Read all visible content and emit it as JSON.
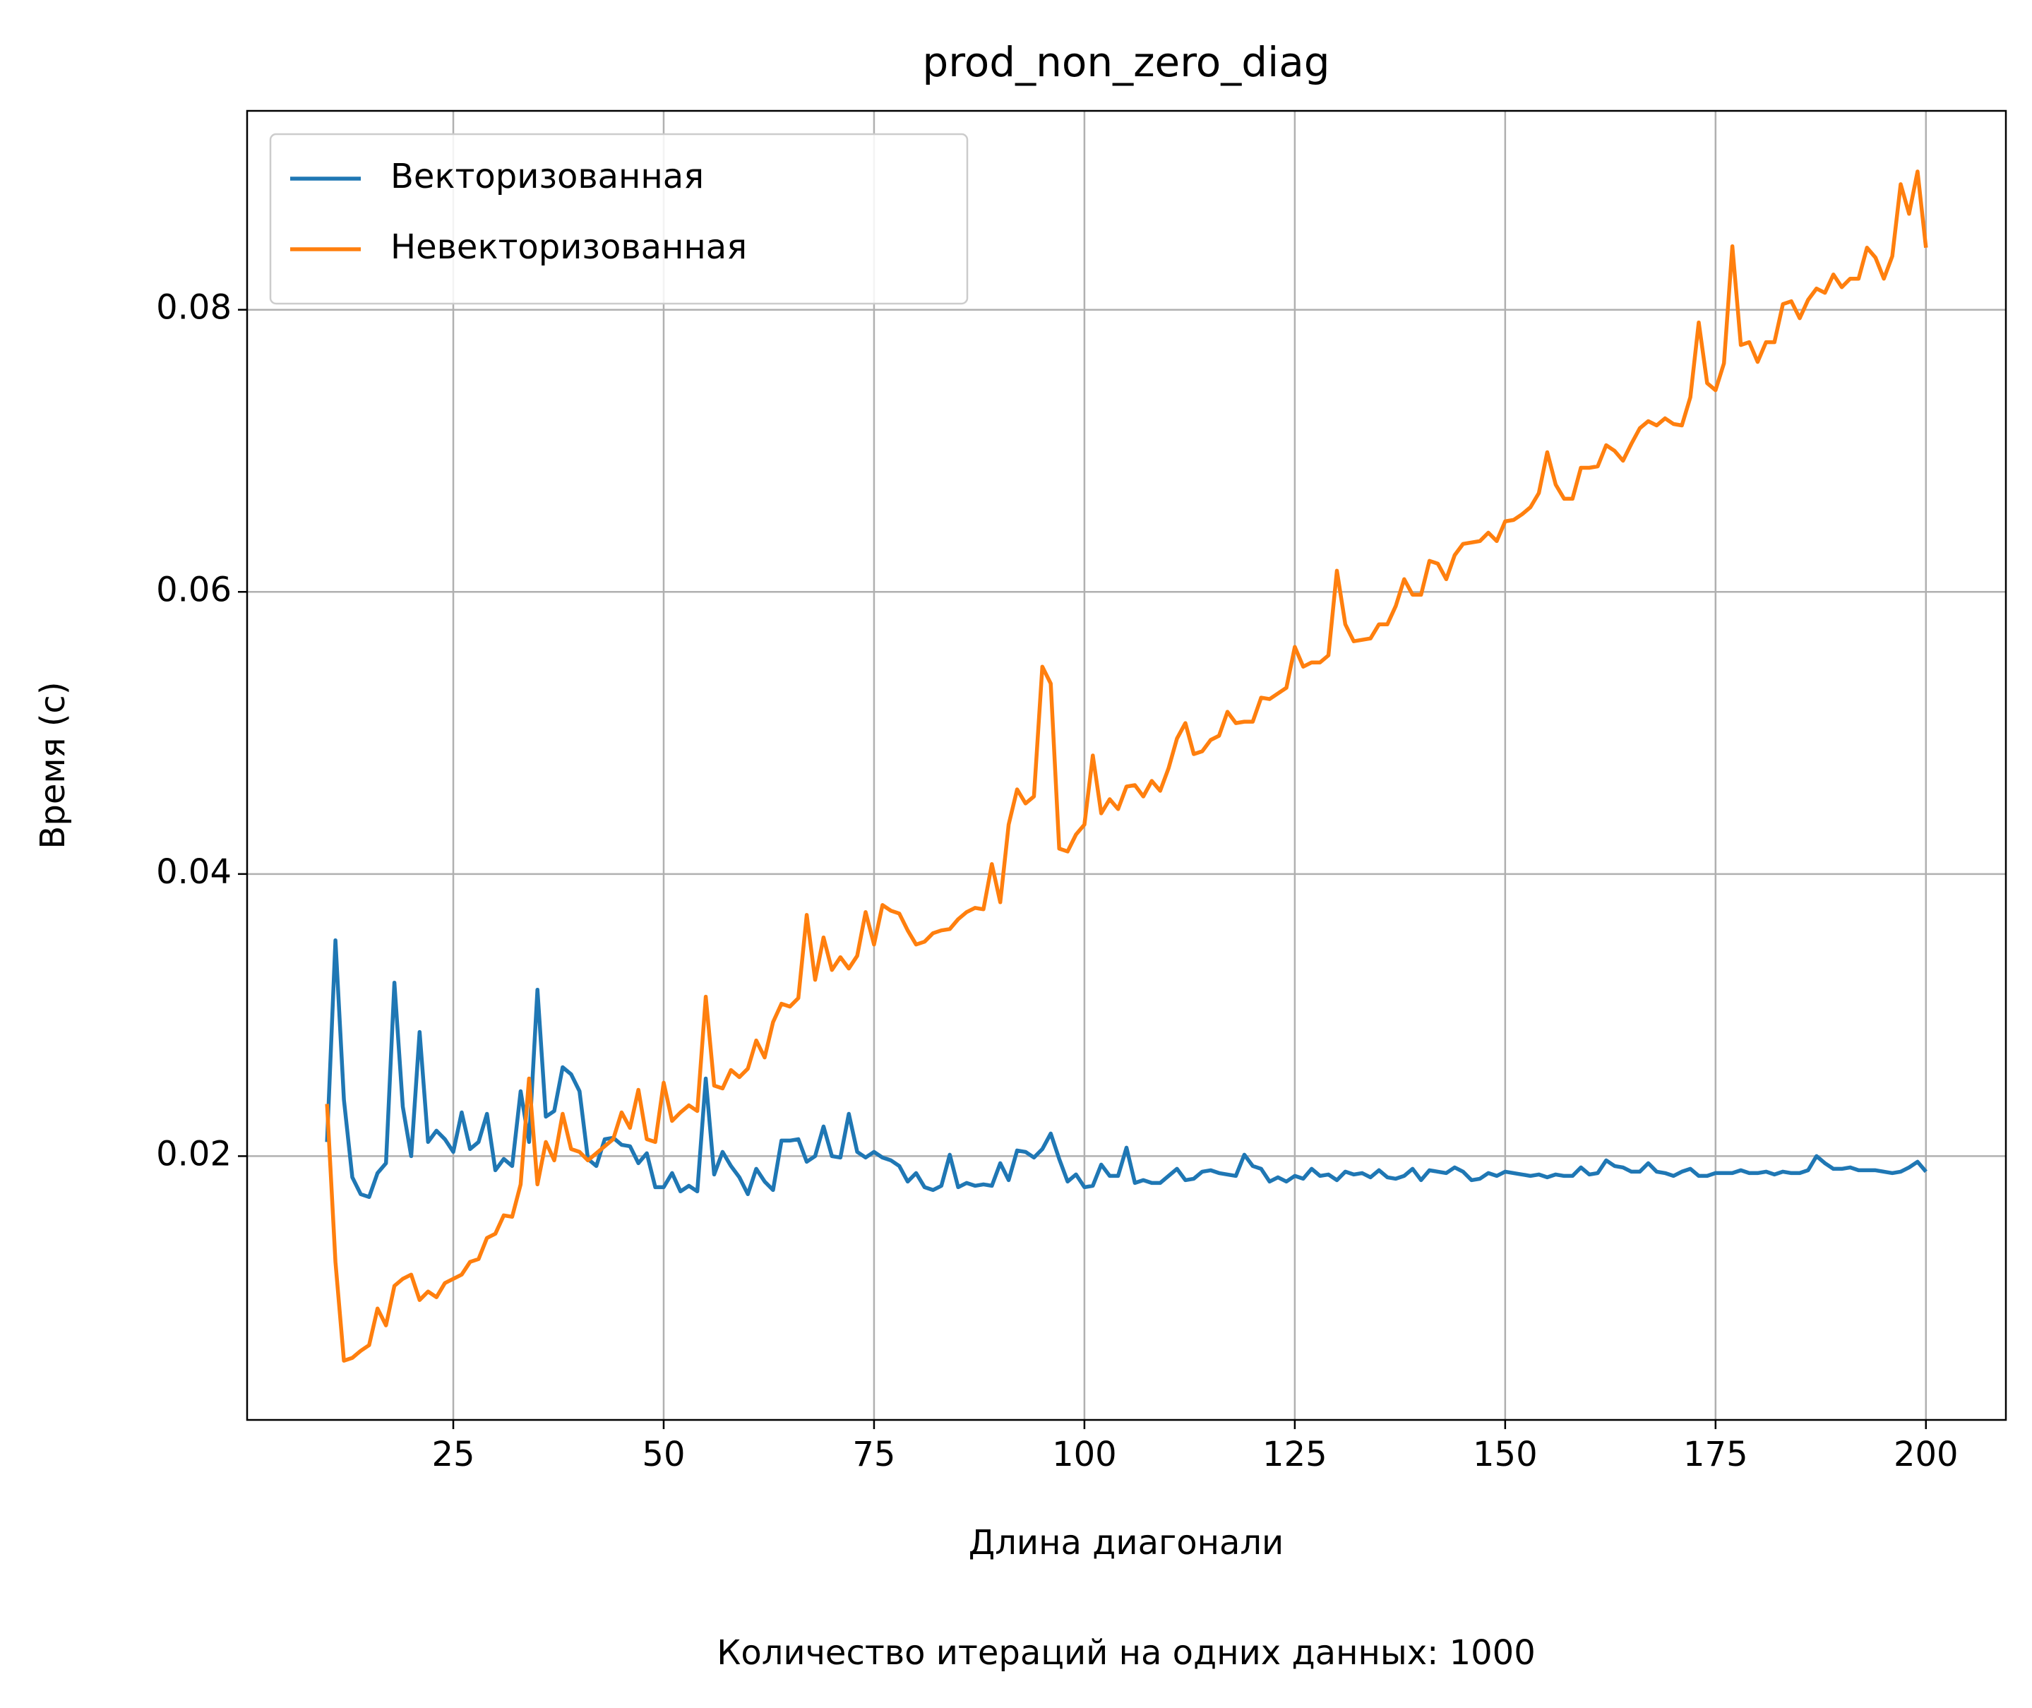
{
  "chart_data": {
    "type": "line",
    "title": "prod_non_zero_diag",
    "xlabel": "Длина диагонали",
    "ylabel": "Время (с)",
    "note": "Количество итераций на одних данных: 1000",
    "x": [
      10,
      11,
      12,
      13,
      14,
      15,
      16,
      17,
      18,
      19,
      20,
      21,
      22,
      23,
      24,
      25,
      26,
      27,
      28,
      29,
      30,
      31,
      32,
      33,
      34,
      35,
      36,
      37,
      38,
      39,
      40,
      41,
      42,
      43,
      44,
      45,
      46,
      47,
      48,
      49,
      50,
      51,
      52,
      53,
      54,
      55,
      56,
      57,
      58,
      59,
      60,
      61,
      62,
      63,
      64,
      65,
      66,
      67,
      68,
      69,
      70,
      71,
      72,
      73,
      74,
      75,
      76,
      77,
      78,
      79,
      80,
      81,
      82,
      83,
      84,
      85,
      86,
      87,
      88,
      89,
      90,
      91,
      92,
      93,
      94,
      95,
      96,
      97,
      98,
      99,
      100,
      101,
      102,
      103,
      104,
      105,
      106,
      107,
      108,
      109,
      110,
      111,
      112,
      113,
      114,
      115,
      116,
      117,
      118,
      119,
      120,
      121,
      122,
      123,
      124,
      125,
      126,
      127,
      128,
      129,
      130,
      131,
      132,
      133,
      134,
      135,
      136,
      137,
      138,
      139,
      140,
      141,
      142,
      143,
      144,
      145,
      146,
      147,
      148,
      149,
      150,
      151,
      152,
      153,
      154,
      155,
      156,
      157,
      158,
      159,
      160,
      161,
      162,
      163,
      164,
      165,
      166,
      167,
      168,
      169,
      170,
      171,
      172,
      173,
      174,
      175,
      176,
      177,
      178,
      179,
      180,
      181,
      182,
      183,
      184,
      185,
      186,
      187,
      188,
      189,
      190,
      191,
      192,
      193,
      194,
      195,
      196,
      197,
      198,
      199,
      200
    ],
    "series": [
      {
        "name": "Векторизованная",
        "color": "#1f77b4",
        "values": [
          0.021,
          0.0353,
          0.024,
          0.0185,
          0.0173,
          0.0171,
          0.0188,
          0.0195,
          0.0323,
          0.0235,
          0.02,
          0.0288,
          0.021,
          0.0218,
          0.0212,
          0.0203,
          0.0231,
          0.0205,
          0.021,
          0.023,
          0.019,
          0.0198,
          0.0193,
          0.0246,
          0.021,
          0.0318,
          0.0228,
          0.0232,
          0.0263,
          0.0258,
          0.0246,
          0.0198,
          0.0193,
          0.0212,
          0.0213,
          0.0208,
          0.0207,
          0.0195,
          0.0202,
          0.0178,
          0.0178,
          0.0188,
          0.0175,
          0.0179,
          0.0175,
          0.0255,
          0.0187,
          0.0203,
          0.0193,
          0.0185,
          0.0173,
          0.0191,
          0.0182,
          0.0176,
          0.0211,
          0.0211,
          0.0212,
          0.0196,
          0.02,
          0.0221,
          0.02,
          0.0199,
          0.023,
          0.0203,
          0.0199,
          0.0203,
          0.0199,
          0.0197,
          0.0193,
          0.0182,
          0.0188,
          0.0178,
          0.0176,
          0.0179,
          0.0201,
          0.0178,
          0.0181,
          0.0179,
          0.018,
          0.0179,
          0.0195,
          0.0183,
          0.0204,
          0.0203,
          0.0199,
          0.0205,
          0.0216,
          0.0198,
          0.0182,
          0.0187,
          0.0178,
          0.0179,
          0.0194,
          0.0186,
          0.0186,
          0.0206,
          0.0181,
          0.0183,
          0.0181,
          0.0181,
          0.0186,
          0.0191,
          0.0183,
          0.0184,
          0.0189,
          0.019,
          0.0188,
          0.0187,
          0.0186,
          0.0201,
          0.0193,
          0.0191,
          0.0182,
          0.0185,
          0.0182,
          0.0186,
          0.0184,
          0.0191,
          0.0186,
          0.0187,
          0.0183,
          0.0189,
          0.0187,
          0.0188,
          0.0185,
          0.019,
          0.0185,
          0.0184,
          0.0186,
          0.0191,
          0.0183,
          0.019,
          0.0189,
          0.0188,
          0.0192,
          0.0189,
          0.0183,
          0.0184,
          0.0188,
          0.0186,
          0.0189,
          0.0188,
          0.0187,
          0.0186,
          0.0187,
          0.0185,
          0.0187,
          0.0186,
          0.0186,
          0.0192,
          0.0187,
          0.0188,
          0.0197,
          0.0193,
          0.0192,
          0.0189,
          0.0189,
          0.0195,
          0.0189,
          0.0188,
          0.0186,
          0.0189,
          0.0191,
          0.0186,
          0.0186,
          0.0188,
          0.0188,
          0.0188,
          0.019,
          0.0188,
          0.0188,
          0.0189,
          0.0187,
          0.0189,
          0.0188,
          0.0188,
          0.019,
          0.02,
          0.0195,
          0.0191,
          0.0191,
          0.0192,
          0.019,
          0.019,
          0.019,
          0.0189,
          0.0188,
          0.0189,
          0.0192,
          0.0196,
          0.0189
        ]
      },
      {
        "name": "Невекторизованная",
        "color": "#ff7f0e",
        "values": [
          0.0237,
          0.0125,
          0.0055,
          0.0057,
          0.0062,
          0.0066,
          0.0092,
          0.008,
          0.0108,
          0.0113,
          0.0116,
          0.0098,
          0.0104,
          0.01,
          0.011,
          0.0113,
          0.0116,
          0.0125,
          0.0127,
          0.0142,
          0.0145,
          0.0158,
          0.0157,
          0.018,
          0.0255,
          0.018,
          0.021,
          0.0197,
          0.023,
          0.0205,
          0.0203,
          0.0197,
          0.0202,
          0.0207,
          0.0212,
          0.0231,
          0.022,
          0.0247,
          0.0212,
          0.021,
          0.0252,
          0.0225,
          0.0231,
          0.0236,
          0.0232,
          0.0313,
          0.025,
          0.0248,
          0.0261,
          0.0256,
          0.0262,
          0.0282,
          0.027,
          0.0295,
          0.0308,
          0.0306,
          0.0312,
          0.0371,
          0.0325,
          0.0355,
          0.0332,
          0.0341,
          0.0333,
          0.0342,
          0.0373,
          0.035,
          0.0378,
          0.0374,
          0.0372,
          0.036,
          0.035,
          0.0352,
          0.0358,
          0.036,
          0.0361,
          0.0368,
          0.0373,
          0.0376,
          0.0375,
          0.0407,
          0.038,
          0.0435,
          0.046,
          0.045,
          0.0455,
          0.0547,
          0.0535,
          0.0418,
          0.0416,
          0.0428,
          0.0435,
          0.0484,
          0.0443,
          0.0453,
          0.0446,
          0.0462,
          0.0463,
          0.0455,
          0.0466,
          0.0459,
          0.0475,
          0.0496,
          0.0507,
          0.0485,
          0.0487,
          0.0495,
          0.0498,
          0.0515,
          0.0507,
          0.0508,
          0.0508,
          0.0525,
          0.0524,
          0.0528,
          0.0532,
          0.0561,
          0.0547,
          0.055,
          0.055,
          0.0555,
          0.0615,
          0.0577,
          0.0565,
          0.0566,
          0.0567,
          0.0577,
          0.0577,
          0.059,
          0.0609,
          0.0598,
          0.0598,
          0.0622,
          0.062,
          0.0609,
          0.0626,
          0.0634,
          0.0635,
          0.0636,
          0.0642,
          0.0636,
          0.065,
          0.0651,
          0.0655,
          0.066,
          0.067,
          0.0699,
          0.0676,
          0.0666,
          0.0666,
          0.0688,
          0.0688,
          0.0689,
          0.0704,
          0.07,
          0.0693,
          0.0705,
          0.0716,
          0.0721,
          0.0718,
          0.0723,
          0.0719,
          0.0718,
          0.0738,
          0.0791,
          0.0748,
          0.0743,
          0.0762,
          0.0845,
          0.0775,
          0.0777,
          0.0763,
          0.0777,
          0.0777,
          0.0804,
          0.0806,
          0.0794,
          0.0807,
          0.0815,
          0.0812,
          0.0825,
          0.0816,
          0.0822,
          0.0822,
          0.0844,
          0.0837,
          0.0822,
          0.0838,
          0.0889,
          0.0868,
          0.0898,
          0.0844
        ]
      }
    ],
    "xlim": [
      0.5,
      209.5
    ],
    "xticks": [
      25,
      50,
      75,
      100,
      125,
      150,
      175,
      200
    ],
    "ylim": [
      0.0013,
      0.0941
    ],
    "yticks": [
      0.02,
      0.04,
      0.06,
      0.08
    ],
    "grid": true,
    "legend": "upper left"
  }
}
